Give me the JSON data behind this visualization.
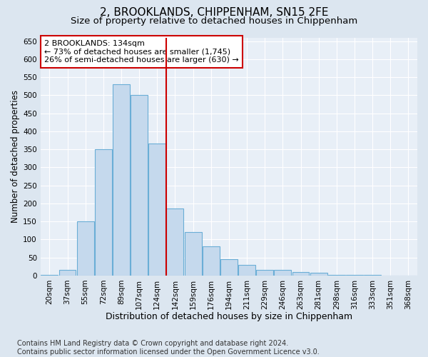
{
  "title1": "2, BROOKLANDS, CHIPPENHAM, SN15 2FE",
  "title2": "Size of property relative to detached houses in Chippenham",
  "xlabel": "Distribution of detached houses by size in Chippenham",
  "ylabel": "Number of detached properties",
  "categories": [
    "20sqm",
    "37sqm",
    "55sqm",
    "72sqm",
    "89sqm",
    "107sqm",
    "124sqm",
    "142sqm",
    "159sqm",
    "176sqm",
    "194sqm",
    "211sqm",
    "229sqm",
    "246sqm",
    "263sqm",
    "281sqm",
    "298sqm",
    "316sqm",
    "333sqm",
    "351sqm",
    "368sqm"
  ],
  "values": [
    2,
    15,
    150,
    350,
    530,
    500,
    365,
    185,
    120,
    80,
    45,
    30,
    15,
    15,
    10,
    8,
    2,
    1,
    1,
    0,
    0
  ],
  "bar_color": "#c5d9ed",
  "bar_edge_color": "#6aaed6",
  "vline_color": "#cc0000",
  "vline_x_index": 6.5,
  "annotation_text": "2 BROOKLANDS: 134sqm\n← 73% of detached houses are smaller (1,745)\n26% of semi-detached houses are larger (630) →",
  "annotation_box_color": "#ffffff",
  "annotation_box_edge_color": "#cc0000",
  "ylim": [
    0,
    660
  ],
  "yticks": [
    0,
    50,
    100,
    150,
    200,
    250,
    300,
    350,
    400,
    450,
    500,
    550,
    600,
    650
  ],
  "bg_color": "#dce6f0",
  "plot_bg_color": "#e8eff7",
  "footer": "Contains HM Land Registry data © Crown copyright and database right 2024.\nContains public sector information licensed under the Open Government Licence v3.0.",
  "title1_fontsize": 11,
  "title2_fontsize": 9.5,
  "xlabel_fontsize": 9,
  "ylabel_fontsize": 8.5,
  "tick_fontsize": 7.5,
  "annotation_fontsize": 8,
  "footer_fontsize": 7
}
